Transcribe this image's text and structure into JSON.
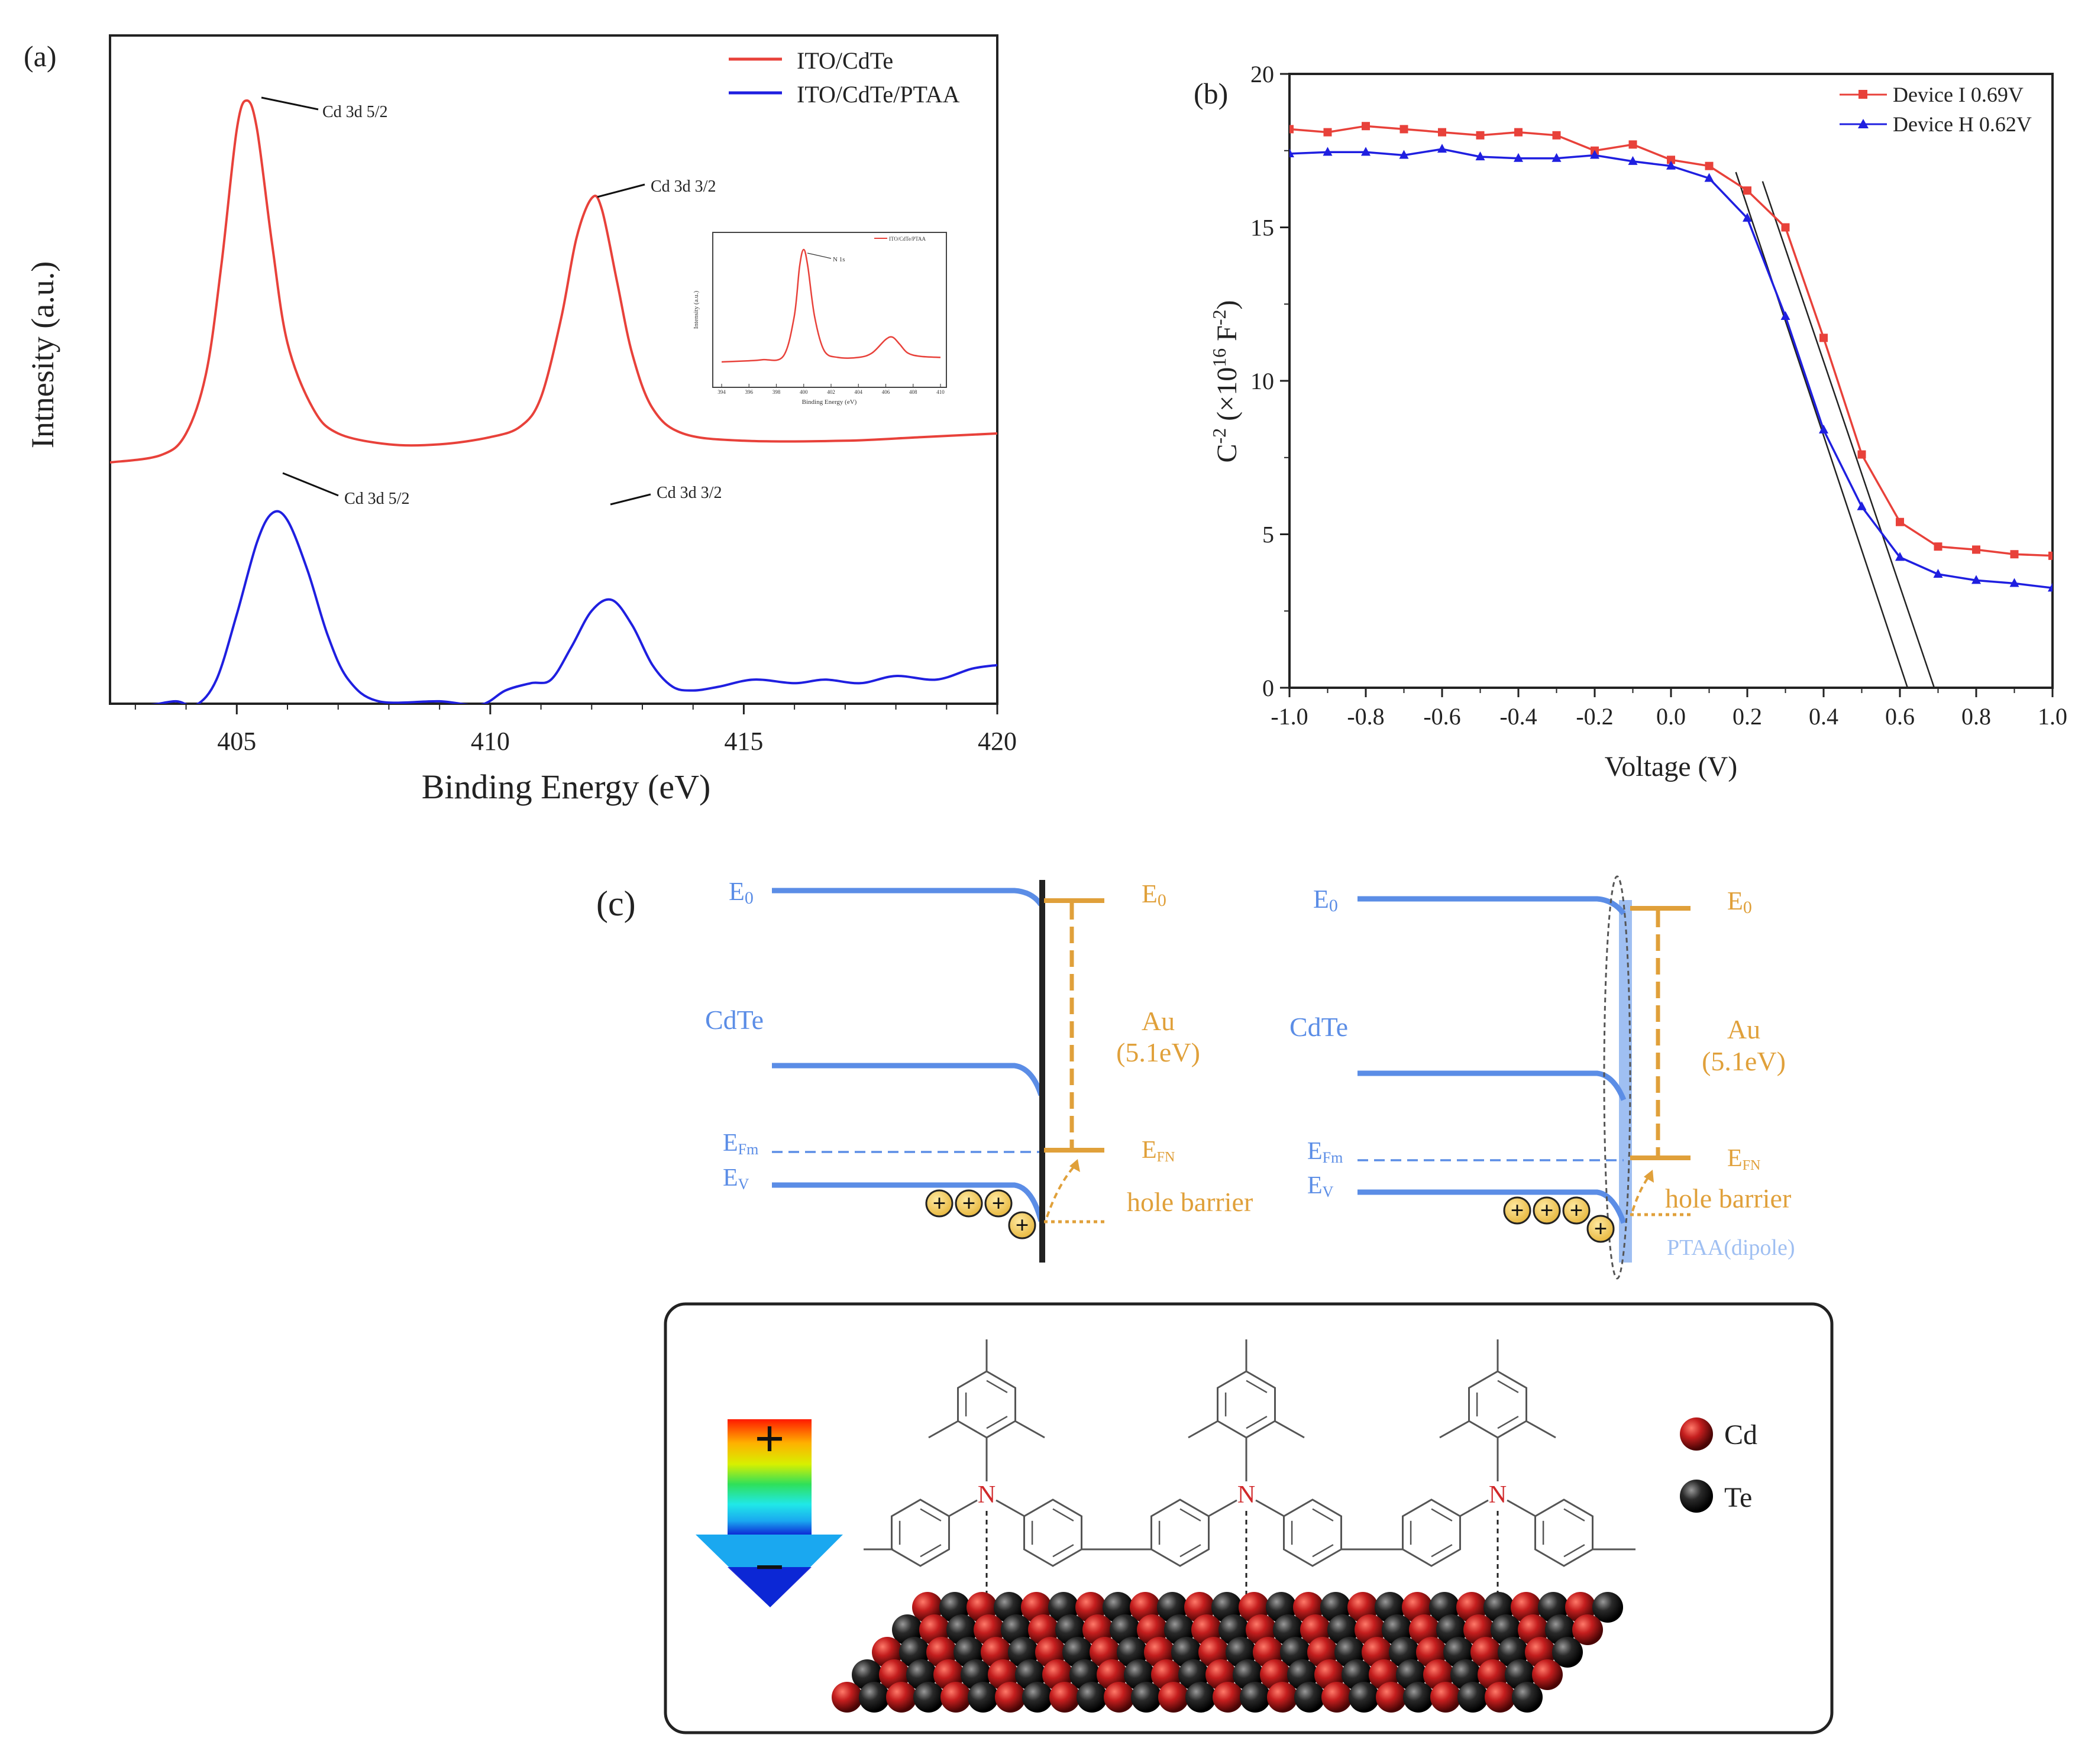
{
  "panels": {
    "a": {
      "label": "(a)"
    },
    "b": {
      "label": "(b)"
    },
    "c": {
      "label": "(c)"
    }
  },
  "colors": {
    "red": "#e8413a",
    "blue": "#1f1fe0",
    "band": "#5b8de6",
    "gold": "#e0a03a",
    "ptaa": "#9fbff2"
  },
  "chart_data": [
    {
      "type": "line",
      "panel": "a",
      "title": "",
      "xlabel": "Binding Energy (eV)",
      "ylabel": "Intnesity (a.u.)",
      "xlim": [
        402.5,
        420
      ],
      "xticks": [
        405,
        410,
        415,
        420
      ],
      "grid": false,
      "legend_position": "top-right",
      "series": [
        {
          "name": "ITO/CdTe",
          "color": "#e8413a",
          "x": [
            402.5,
            403.5,
            404.0,
            404.4,
            404.7,
            405.0,
            405.2,
            405.4,
            405.7,
            406.0,
            406.5,
            407.0,
            408.0,
            409.0,
            410.0,
            410.6,
            411.0,
            411.4,
            411.7,
            412.0,
            412.2,
            412.5,
            412.8,
            413.2,
            413.8,
            415.0,
            417.0,
            418.5,
            420.0
          ],
          "y": [
            0.0,
            0.02,
            0.08,
            0.25,
            0.55,
            0.92,
            1.0,
            0.92,
            0.6,
            0.33,
            0.15,
            0.08,
            0.05,
            0.05,
            0.07,
            0.1,
            0.18,
            0.4,
            0.62,
            0.73,
            0.7,
            0.5,
            0.3,
            0.15,
            0.08,
            0.06,
            0.06,
            0.07,
            0.08
          ]
        },
        {
          "name": "ITO/CdTe/PTAA",
          "color": "#1f1fe0",
          "x": [
            402.5,
            403.3,
            403.8,
            404.2,
            404.6,
            405.0,
            405.4,
            405.7,
            406.0,
            406.4,
            406.8,
            407.2,
            407.8,
            409.0,
            409.8,
            410.3,
            410.8,
            411.2,
            411.6,
            412.0,
            412.4,
            412.8,
            413.2,
            413.6,
            414.0,
            414.5,
            415.2,
            416.0,
            416.6,
            417.3,
            418.0,
            418.8,
            419.5,
            420.0
          ],
          "y": [
            -0.68,
            -0.67,
            -0.66,
            -0.67,
            -0.6,
            -0.42,
            -0.22,
            -0.14,
            -0.16,
            -0.3,
            -0.48,
            -0.6,
            -0.66,
            -0.66,
            -0.67,
            -0.63,
            -0.61,
            -0.6,
            -0.51,
            -0.41,
            -0.38,
            -0.45,
            -0.56,
            -0.62,
            -0.63,
            -0.62,
            -0.6,
            -0.61,
            -0.6,
            -0.61,
            -0.59,
            -0.6,
            -0.57,
            -0.56
          ]
        }
      ],
      "annotations": [
        "Cd 3d 5/2",
        "Cd 3d 3/2",
        "Cd 3d 5/2",
        "Cd 3d 3/2"
      ],
      "inset": {
        "xlabel": "Binding Energy (eV)",
        "ylabel": "Intensity (a.u.)",
        "legend": "ITO/CdTe/PTAA",
        "annotation": "N 1s",
        "xticks": [
          "394",
          "396",
          "398",
          "400",
          "402",
          "404",
          "406",
          "408",
          "410"
        ],
        "x": [
          394,
          396,
          397,
          398.5,
          399.3,
          399.7,
          400.0,
          400.3,
          400.8,
          401.5,
          402.5,
          404.0,
          405.0,
          406.0,
          406.5,
          407.0,
          407.6,
          408.5,
          410.0
        ],
        "y": [
          0.0,
          0.01,
          0.02,
          0.05,
          0.4,
          0.85,
          1.0,
          0.85,
          0.4,
          0.1,
          0.04,
          0.04,
          0.08,
          0.2,
          0.22,
          0.16,
          0.08,
          0.05,
          0.04
        ]
      }
    },
    {
      "type": "line",
      "panel": "b",
      "title": "",
      "xlabel": "Voltage (V)",
      "ylabel_main": "C",
      "ylabel_power": "-2",
      "ylabel_mid": " (×10",
      "ylabel_power2": "16",
      "ylabel_unit": " F",
      "ylabel_power3": "-2",
      "ylabel_end": ")",
      "xlim": [
        -1.0,
        1.0
      ],
      "ylim": [
        0,
        20
      ],
      "xticks": [
        -1.0,
        -0.8,
        -0.6,
        -0.4,
        -0.2,
        0.0,
        0.2,
        0.4,
        0.6,
        0.8,
        1.0
      ],
      "xtick_labels": [
        "-1.0",
        "-0.8",
        "-0.6",
        "-0.4",
        "-0.2",
        "0.0",
        "0.2",
        "0.4",
        "0.6",
        "0.8",
        "1.0"
      ],
      "yticks": [
        0,
        5,
        10,
        15,
        20
      ],
      "ytick_labels": [
        "0",
        "5",
        "10",
        "15",
        "20"
      ],
      "grid": false,
      "legend_position": "top-right",
      "series": [
        {
          "name": "Device I  0.69V",
          "color": "#e8413a",
          "marker": "square",
          "x": [
            -1.0,
            -0.9,
            -0.8,
            -0.7,
            -0.6,
            -0.5,
            -0.4,
            -0.3,
            -0.2,
            -0.1,
            0.0,
            0.1,
            0.2,
            0.3,
            0.4,
            0.5,
            0.6,
            0.7,
            0.8,
            0.9,
            1.0
          ],
          "y": [
            18.2,
            18.1,
            18.3,
            18.2,
            18.1,
            18.0,
            18.1,
            18.0,
            17.5,
            17.7,
            17.2,
            17.0,
            16.2,
            15.0,
            11.4,
            7.6,
            5.4,
            4.6,
            4.5,
            4.35,
            4.3
          ]
        },
        {
          "name": "Device H 0.62V",
          "color": "#1f1fe0",
          "marker": "triangle",
          "x": [
            -1.0,
            -0.9,
            -0.8,
            -0.7,
            -0.6,
            -0.5,
            -0.4,
            -0.3,
            -0.2,
            -0.1,
            0.0,
            0.1,
            0.2,
            0.3,
            0.4,
            0.5,
            0.6,
            0.7,
            0.8,
            0.9,
            1.0
          ],
          "y": [
            17.4,
            17.45,
            17.45,
            17.35,
            17.55,
            17.3,
            17.25,
            17.25,
            17.35,
            17.15,
            17.0,
            16.6,
            15.3,
            12.1,
            8.4,
            5.9,
            4.25,
            3.7,
            3.5,
            3.4,
            3.25
          ]
        }
      ],
      "fit_lines": [
        {
          "x": [
            0.17,
            0.62
          ],
          "y": [
            16.8,
            0.0
          ]
        },
        {
          "x": [
            0.24,
            0.69
          ],
          "y": [
            16.5,
            0.0
          ]
        }
      ]
    }
  ],
  "diagram": {
    "left": {
      "e0_left": "E",
      "e0_left_sub": "0",
      "cdte": "CdTe",
      "efm": "E",
      "efm_sub": "Fm",
      "ev": "E",
      "ev_sub": "V",
      "e0_right": "E",
      "e0_right_sub": "0",
      "au": "Au",
      "au_wf": "(5.1eV)",
      "efn": "E",
      "efn_sub": "FN",
      "hole_barrier": "hole barrier"
    },
    "right": {
      "e0_left": "E",
      "e0_left_sub": "0",
      "cdte": "CdTe",
      "efm": "E",
      "efm_sub": "Fm",
      "ev": "E",
      "ev_sub": "V",
      "e0_right": "E",
      "e0_right_sub": "0",
      "au": "Au",
      "au_wf": "(5.1eV)",
      "efn": "E",
      "efn_sub": "FN",
      "hole_barrier": "hole barrier",
      "ptaa": "PTAA(dipole)"
    },
    "hole_symbol": "+",
    "dipole_plus": "+",
    "dipole_minus": "−",
    "molecule_atom": "N",
    "legend_cd": "Cd",
    "legend_te": "Te",
    "atom_colors": {
      "cd": "#c41e1e",
      "te": "#1e1e1e"
    }
  }
}
